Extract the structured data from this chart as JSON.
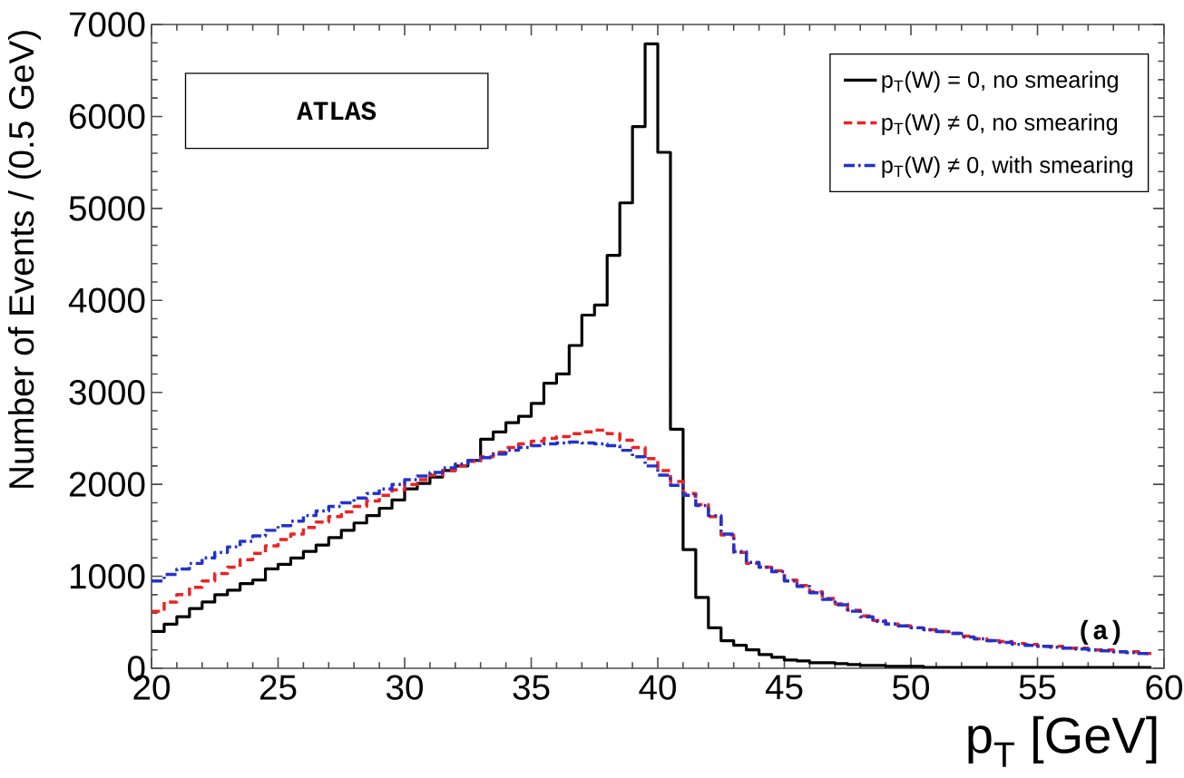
{
  "chart_data": {
    "type": "step",
    "xlabel": "p$_{T}$ [GeV]",
    "ylabel": "Number of Events / (0.5 GeV)",
    "annotations": [
      "ATLAS",
      "(a)"
    ],
    "x": [
      20,
      20.5,
      21,
      21.5,
      22,
      22.5,
      23,
      23.5,
      24,
      24.5,
      25,
      25.5,
      26,
      26.5,
      27,
      27.5,
      28,
      28.5,
      29,
      29.5,
      30,
      30.5,
      31,
      31.5,
      32,
      32.5,
      33,
      33.5,
      34,
      34.5,
      35,
      35.5,
      36,
      36.5,
      37,
      37.5,
      38,
      38.5,
      39,
      39.5,
      40,
      40.5,
      41,
      41.5,
      42,
      42.5,
      43,
      43.5,
      44,
      44.5,
      45,
      45.5,
      46,
      46.5,
      47,
      47.5,
      48,
      48.5,
      49,
      49.5,
      50,
      50.5,
      51,
      51.5,
      52,
      52.5,
      53,
      53.5,
      54,
      54.5,
      55,
      55.5,
      56,
      56.5,
      57,
      57.5,
      58,
      58.5,
      59,
      59.5
    ],
    "series": [
      {
        "name": "p$_{T}$(W) = 0, no smearing",
        "color": "#000000",
        "line_style": "solid",
        "values": [
          400,
          480,
          560,
          650,
          720,
          800,
          850,
          920,
          960,
          1080,
          1130,
          1200,
          1270,
          1340,
          1420,
          1500,
          1580,
          1660,
          1740,
          1830,
          1950,
          2010,
          2080,
          2150,
          2200,
          2260,
          2490,
          2570,
          2670,
          2740,
          2880,
          3100,
          3200,
          3510,
          3840,
          3950,
          4490,
          5060,
          5890,
          6790,
          5610,
          2600,
          1290,
          770,
          440,
          300,
          250,
          200,
          150,
          120,
          90,
          80,
          60,
          60,
          50,
          40,
          30,
          30,
          20,
          20,
          20,
          10,
          10,
          10,
          10,
          10,
          10,
          10,
          10,
          10,
          10,
          10,
          10,
          10,
          10,
          10,
          10,
          10,
          10,
          10
        ]
      },
      {
        "name": "p$_{T}$(W) ≠ 0, no smearing",
        "color": "#ee2222",
        "line_style": "dashed",
        "values": [
          620,
          720,
          800,
          880,
          950,
          1030,
          1100,
          1180,
          1250,
          1330,
          1400,
          1460,
          1530,
          1590,
          1650,
          1700,
          1760,
          1820,
          1880,
          1940,
          2000,
          2050,
          2100,
          2150,
          2200,
          2250,
          2300,
          2350,
          2400,
          2440,
          2470,
          2500,
          2520,
          2550,
          2570,
          2590,
          2550,
          2480,
          2400,
          2280,
          2150,
          2030,
          1900,
          1780,
          1650,
          1450,
          1260,
          1140,
          1100,
          1060,
          960,
          900,
          830,
          760,
          700,
          630,
          570,
          520,
          480,
          460,
          440,
          420,
          400,
          380,
          350,
          320,
          300,
          290,
          270,
          260,
          240,
          240,
          220,
          220,
          200,
          200,
          180,
          180,
          160,
          160
        ]
      },
      {
        "name": "p$_{T}$(W) ≠ 0, with smearing",
        "color": "#2233cc",
        "line_style": "dashdot",
        "values": [
          950,
          1020,
          1080,
          1140,
          1200,
          1260,
          1320,
          1380,
          1440,
          1500,
          1550,
          1600,
          1660,
          1710,
          1760,
          1800,
          1850,
          1900,
          1950,
          2000,
          2050,
          2090,
          2130,
          2180,
          2220,
          2260,
          2290,
          2330,
          2370,
          2400,
          2420,
          2440,
          2450,
          2460,
          2450,
          2440,
          2420,
          2370,
          2300,
          2200,
          2100,
          1990,
          1880,
          1770,
          1660,
          1460,
          1270,
          1150,
          1100,
          1050,
          950,
          890,
          820,
          750,
          690,
          620,
          560,
          510,
          480,
          460,
          440,
          420,
          400,
          380,
          340,
          320,
          300,
          280,
          260,
          250,
          240,
          230,
          220,
          210,
          200,
          190,
          180,
          170,
          160,
          160
        ]
      }
    ],
    "xlim": [
      20,
      60
    ],
    "ylim": [
      0,
      7000
    ],
    "xticks": [
      20,
      25,
      30,
      35,
      40,
      45,
      50,
      55,
      60
    ],
    "yticks": [
      0,
      1000,
      2000,
      3000,
      4000,
      5000,
      6000,
      7000
    ],
    "legend": "top right"
  }
}
